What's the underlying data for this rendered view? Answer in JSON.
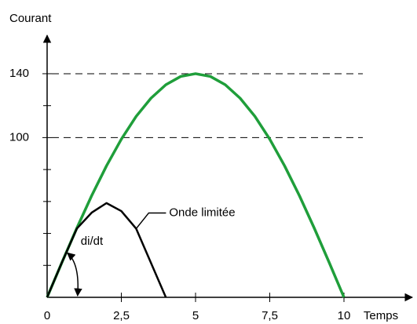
{
  "chart_data": {
    "type": "line",
    "x_label": "Temps",
    "y_label": "Courant",
    "xlim": [
      0,
      12.3
    ],
    "ylim": [
      0,
      164
    ],
    "xticks": [
      0,
      {
        "value": 2.5,
        "label": "2,5"
      },
      5,
      {
        "value": 7.5,
        "label": "7,5"
      },
      10
    ],
    "yticks": [
      100,
      140
    ],
    "yminor_ticks": [
      20,
      40,
      60,
      80,
      120
    ],
    "grid": "dashed",
    "series": [
      {
        "name": null,
        "color": "#1f9e3a",
        "x": [
          0,
          0.5,
          1,
          1.5,
          2,
          2.5,
          3,
          3.5,
          4,
          4.5,
          5,
          5.5,
          6,
          6.5,
          7,
          7.5,
          8,
          8.5,
          9,
          9.5,
          10
        ],
        "values": [
          0,
          21.9,
          43.3,
          63.6,
          82.3,
          99,
          113.3,
          124.7,
          133.1,
          138.3,
          140,
          138.3,
          133.1,
          124.7,
          113.3,
          99,
          82.3,
          63.6,
          43.3,
          21.9,
          0
        ]
      },
      {
        "name": null,
        "color": "#000000",
        "x": [
          0,
          0.5,
          1,
          1.5,
          2,
          2.5,
          3,
          4
        ],
        "values": [
          0,
          21.9,
          43,
          53,
          59,
          54,
          43,
          0
        ]
      }
    ],
    "annotations": [
      {
        "text": "Onde limitée",
        "x": 3,
        "y": 43
      },
      {
        "text": "di/dt",
        "x": 1,
        "y": 20
      }
    ]
  }
}
